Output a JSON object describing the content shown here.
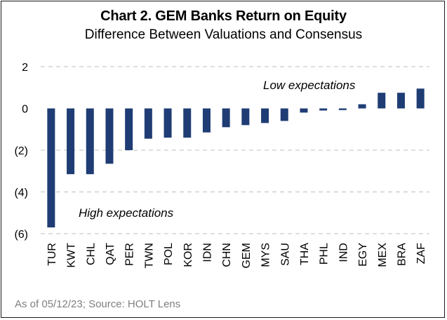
{
  "title": "Chart 2. GEM Banks Return on Equity",
  "subtitle": "Difference Between Valuations and Consensus",
  "source_note": "As of 05/12/23; Source: HOLT Lens",
  "colors": {
    "bar": "#1f3d74",
    "grid": "#bfbfbf",
    "text": "#000000",
    "source": "#7f7f7f"
  },
  "chart_data": {
    "type": "bar",
    "title": "Chart 2. GEM Banks Return on Equity",
    "subtitle": "Difference Between Valuations and Consensus",
    "xlabel": "",
    "ylabel": "",
    "categories": [
      "TUR",
      "KWT",
      "CHL",
      "QAT",
      "PER",
      "TWN",
      "POL",
      "KOR",
      "IDN",
      "CHN",
      "GEM",
      "MYS",
      "SAU",
      "THA",
      "PHL",
      "IND",
      "EGY",
      "MEX",
      "BRA",
      "ZAF"
    ],
    "values": [
      -5.7,
      -3.15,
      -3.15,
      -2.65,
      -2.0,
      -1.45,
      -1.4,
      -1.4,
      -1.15,
      -0.9,
      -0.8,
      -0.7,
      -0.6,
      -0.2,
      -0.1,
      -0.08,
      0.2,
      0.75,
      0.75,
      0.95
    ],
    "ylim": [
      -6,
      2
    ],
    "yticks": [
      2,
      0,
      -2,
      -4,
      -6
    ],
    "ytick_labels": [
      "2",
      "0",
      "(2)",
      "(4)",
      "(6)"
    ],
    "grid": true,
    "annotations": [
      "Low expectations",
      "High expectations"
    ]
  }
}
